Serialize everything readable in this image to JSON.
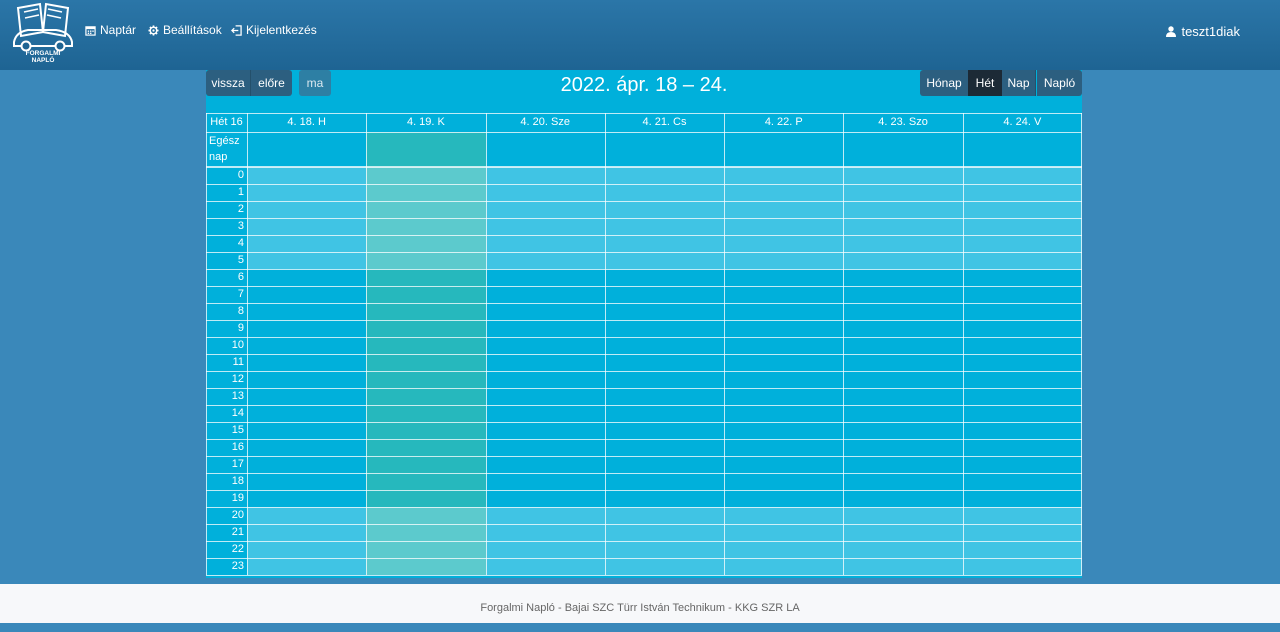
{
  "navbar": {
    "logo_text_line1": "FORGALMI",
    "logo_text_line2": "NAPLÓ",
    "items": [
      {
        "label": "Naptár",
        "icon": "calendar-icon"
      },
      {
        "label": "Beállítások",
        "icon": "gear-icon"
      },
      {
        "label": "Kijelentkezés",
        "icon": "sign-out-icon"
      }
    ],
    "user": {
      "label": "teszt1diak",
      "icon": "user-icon"
    }
  },
  "calendar": {
    "nav_buttons": {
      "back": "vissza",
      "forward": "előre",
      "today": "ma"
    },
    "title": "2022. ápr. 18 – 24.",
    "view_buttons": [
      "Hónap",
      "Hét",
      "Nap",
      "Napló"
    ],
    "active_view": "Hét",
    "week_label": "Hét 16",
    "allday_label": "Egész nap",
    "days": [
      "4. 18. H",
      "4. 19. K",
      "4. 20. Sze",
      "4. 21. Cs",
      "4. 22. P",
      "4. 23. Szo",
      "4. 24. V"
    ],
    "today_index": 1,
    "hours": [
      "0",
      "1",
      "2",
      "3",
      "4",
      "5",
      "6",
      "7",
      "8",
      "9",
      "10",
      "11",
      "12",
      "13",
      "14",
      "15",
      "16",
      "17",
      "18",
      "19",
      "20",
      "21",
      "22",
      "23"
    ]
  },
  "footer": {
    "text": "Forgalmi Napló - Bajai SZC Türr István Technikum - KKG SZR LA"
  },
  "colors": {
    "background": "#3a88ba",
    "navbar": "#1e6493",
    "calendar": "#00b0db",
    "today": "#26b8bd",
    "active_button": "#1c2a36"
  }
}
